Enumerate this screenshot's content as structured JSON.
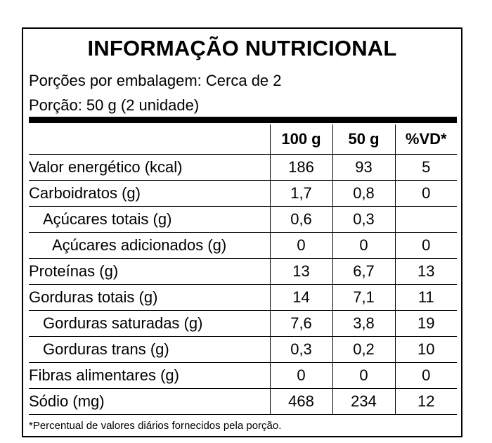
{
  "title": "INFORMAÇÃO NUTRICIONAL",
  "servings_per_package": "Porções por embalagem: Cerca de 2",
  "serving_size": "Porção: 50 g (2 unidade)",
  "headers": [
    "100 g",
    "50 g",
    "%VD*"
  ],
  "rows": [
    {
      "name": "Valor energético (kcal)",
      "indent": 0,
      "v100": "186",
      "v50": "93",
      "vd": "5"
    },
    {
      "name": "Carboidratos (g)",
      "indent": 0,
      "v100": "1,7",
      "v50": "0,8",
      "vd": "0"
    },
    {
      "name": "Açúcares totais (g)",
      "indent": 1,
      "v100": "0,6",
      "v50": "0,3",
      "vd": ""
    },
    {
      "name": "Açúcares adicionados (g)",
      "indent": 2,
      "v100": "0",
      "v50": "0",
      "vd": "0"
    },
    {
      "name": "Proteínas (g)",
      "indent": 0,
      "v100": "13",
      "v50": "6,7",
      "vd": "13"
    },
    {
      "name": "Gorduras totais (g)",
      "indent": 0,
      "v100": "14",
      "v50": "7,1",
      "vd": "11"
    },
    {
      "name": "Gorduras saturadas (g)",
      "indent": 1,
      "v100": "7,6",
      "v50": "3,8",
      "vd": "19"
    },
    {
      "name": "Gorduras trans (g)",
      "indent": 1,
      "v100": "0,3",
      "v50": "0,2",
      "vd": "10"
    },
    {
      "name": "Fibras alimentares (g)",
      "indent": 0,
      "v100": "0",
      "v50": "0",
      "vd": "0"
    },
    {
      "name": "Sódio (mg)",
      "indent": 0,
      "v100": "468",
      "v50": "234",
      "vd": "12"
    }
  ],
  "footnote": "*Percentual de valores diários fornecidos pela porção."
}
